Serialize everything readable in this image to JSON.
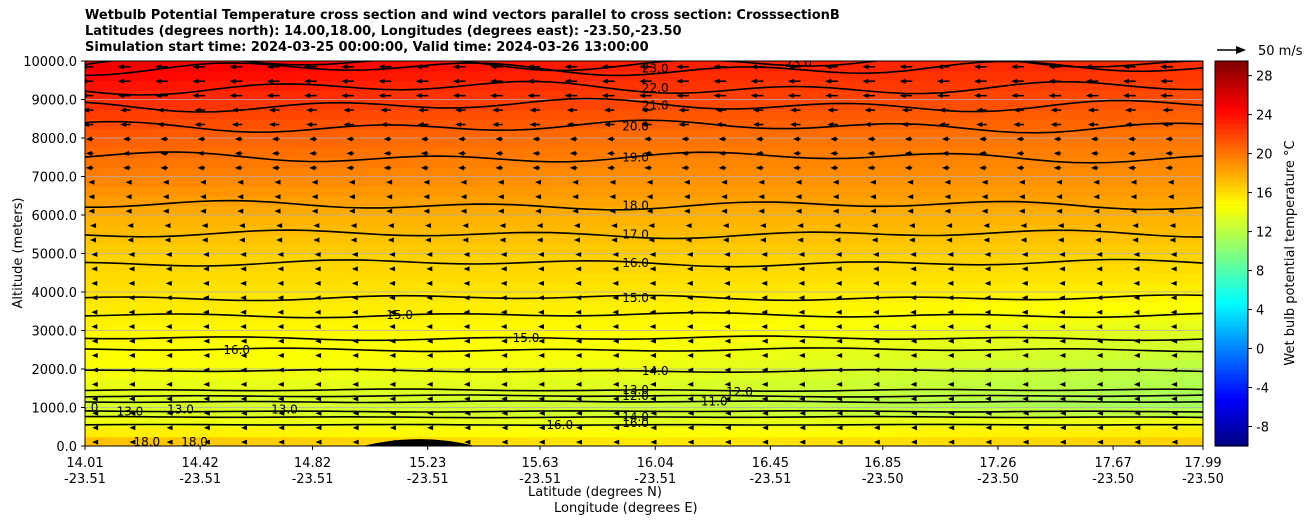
{
  "chart_data": {
    "type": "heatmap",
    "title_lines": [
      "Wetbulb Potential Temperature cross section and wind vectors parallel to cross section: CrosssectionB",
      "Latitudes (degrees north): 14.00,18.00, Longitudes (degrees east): -23.50,-23.50",
      "Simulation start time: 2024-03-25 00:00:00, Valid time: 2024-03-26 13:00:00"
    ],
    "ylabel": "Altitude (meters)",
    "xlabel": "Latitude (degrees N)",
    "xlabel2": "Longitude (degrees E)",
    "ylim": [
      0,
      10000
    ],
    "yticks": [
      "0.0",
      "1000.0",
      "2000.0",
      "3000.0",
      "4000.0",
      "5000.0",
      "6000.0",
      "7000.0",
      "8000.0",
      "9000.0",
      "10000.0"
    ],
    "ytick_values": [
      0,
      1000,
      2000,
      3000,
      4000,
      5000,
      6000,
      7000,
      8000,
      9000,
      10000
    ],
    "xlim": [
      14.01,
      17.99
    ],
    "xtick_lat": [
      "14.01",
      "14.42",
      "14.82",
      "15.23",
      "15.63",
      "16.04",
      "16.45",
      "16.85",
      "17.26",
      "17.67",
      "17.99"
    ],
    "xtick_lon": [
      "-23.51",
      "-23.51",
      "-23.51",
      "-23.51",
      "-23.51",
      "-23.51",
      "-23.51",
      "-23.50",
      "-23.50",
      "-23.50",
      "-23.50"
    ],
    "xtick_values": [
      14.01,
      14.42,
      14.82,
      15.23,
      15.63,
      16.04,
      16.45,
      16.85,
      17.26,
      17.67,
      17.99
    ],
    "grid": "horizontal",
    "colorbar": {
      "label": "Wet bulb potential temperature $^\\circ$C",
      "ticks": [
        "-8",
        "-4",
        "0",
        "4",
        "8",
        "12",
        "16",
        "20",
        "24",
        "28"
      ],
      "tick_values": [
        -8,
        -4,
        0,
        4,
        8,
        12,
        16,
        20,
        24,
        28
      ],
      "range": [
        -10,
        29.5
      ],
      "colormap": "jet"
    },
    "quiver_key": "50 m/s",
    "temperature_profiles": [
      {
        "name": "lat 14.01",
        "altitude": [
          0,
          500,
          1000,
          2000,
          3000,
          4000,
          5000,
          6000,
          7000,
          8000,
          9000,
          10000
        ],
        "values": [
          18.0,
          14.5,
          13.0,
          14.5,
          15.0,
          15.8,
          16.5,
          17.8,
          19.6,
          21.0,
          23.0,
          25.5
        ]
      },
      {
        "name": "lat 16.04",
        "altitude": [
          0,
          500,
          1000,
          2000,
          3000,
          4000,
          5000,
          6000,
          7000,
          8000,
          9000,
          10000
        ],
        "values": [
          16.0,
          14.0,
          12.5,
          14.0,
          14.8,
          15.6,
          16.6,
          17.8,
          19.0,
          20.2,
          22.0,
          23.5
        ]
      },
      {
        "name": "lat 17.99",
        "altitude": [
          0,
          500,
          1000,
          2000,
          3000,
          4000,
          5000,
          6000,
          7000,
          8000,
          9000,
          10000
        ],
        "values": [
          17.0,
          15.0,
          11.0,
          12.0,
          13.5,
          15.2,
          16.5,
          17.8,
          19.0,
          20.0,
          21.5,
          23.0
        ]
      }
    ],
    "contour_labels": [
      {
        "text": "23.0",
        "lat": 16.04,
        "alt": 9800
      },
      {
        "text": "22.0",
        "lat": 16.04,
        "alt": 9300
      },
      {
        "text": "21.0",
        "lat": 16.04,
        "alt": 8850
      },
      {
        "text": "20.0",
        "lat": 15.97,
        "alt": 8300
      },
      {
        "text": "19.0",
        "lat": 15.97,
        "alt": 7500
      },
      {
        "text": "18.0",
        "lat": 15.97,
        "alt": 6250
      },
      {
        "text": "17.0",
        "lat": 15.97,
        "alt": 5500
      },
      {
        "text": "16.0",
        "lat": 15.97,
        "alt": 4750
      },
      {
        "text": "15.0",
        "lat": 15.97,
        "alt": 3850
      },
      {
        "text": "15.0",
        "lat": 15.13,
        "alt": 3400
      },
      {
        "text": "15.0",
        "lat": 15.58,
        "alt": 2800
      },
      {
        "text": "16.0",
        "lat": 14.55,
        "alt": 2500
      },
      {
        "text": "14.0",
        "lat": 16.04,
        "alt": 1950
      },
      {
        "text": "13.0",
        "lat": 15.97,
        "alt": 1450
      },
      {
        "text": "12.0",
        "lat": 15.97,
        "alt": 1300
      },
      {
        "text": "12.0",
        "lat": 16.34,
        "alt": 1400
      },
      {
        "text": "11.0",
        "lat": 16.25,
        "alt": 1150
      },
      {
        "text": "13.0",
        "lat": 14.17,
        "alt": 900
      },
      {
        "text": "13.0",
        "lat": 14.01,
        "alt": 1000
      },
      {
        "text": "13.0",
        "lat": 14.35,
        "alt": 950
      },
      {
        "text": "13.0",
        "lat": 14.72,
        "alt": 950
      },
      {
        "text": "14.0",
        "lat": 15.97,
        "alt": 750
      },
      {
        "text": "16.0",
        "lat": 15.7,
        "alt": 550
      },
      {
        "text": "16.0",
        "lat": 15.97,
        "alt": 600
      },
      {
        "text": "18.0",
        "lat": 14.23,
        "alt": 100
      },
      {
        "text": "18.0",
        "lat": 14.4,
        "alt": 100
      },
      {
        "text": "23.0",
        "lat": 16.55,
        "alt": 9950
      }
    ],
    "wind": [
      {
        "alt_range": [
          9000,
          10000
        ],
        "u_ms": -30
      },
      {
        "alt_range": [
          8000,
          9000
        ],
        "u_ms": -25
      },
      {
        "alt_range": [
          7000,
          8000
        ],
        "u_ms": -18
      },
      {
        "alt_range": [
          6000,
          7000
        ],
        "u_ms": -12
      },
      {
        "alt_range": [
          5000,
          6000
        ],
        "u_ms": -8
      },
      {
        "alt_range": [
          3000,
          5000
        ],
        "u_ms": -5
      },
      {
        "alt_range": [
          1000,
          3000
        ],
        "u_ms": -4
      },
      {
        "alt_range": [
          0,
          1000
        ],
        "u_ms": -3
      }
    ],
    "terrain": {
      "lat_range": [
        15.0,
        15.4
      ],
      "peak_alt": 200
    }
  }
}
